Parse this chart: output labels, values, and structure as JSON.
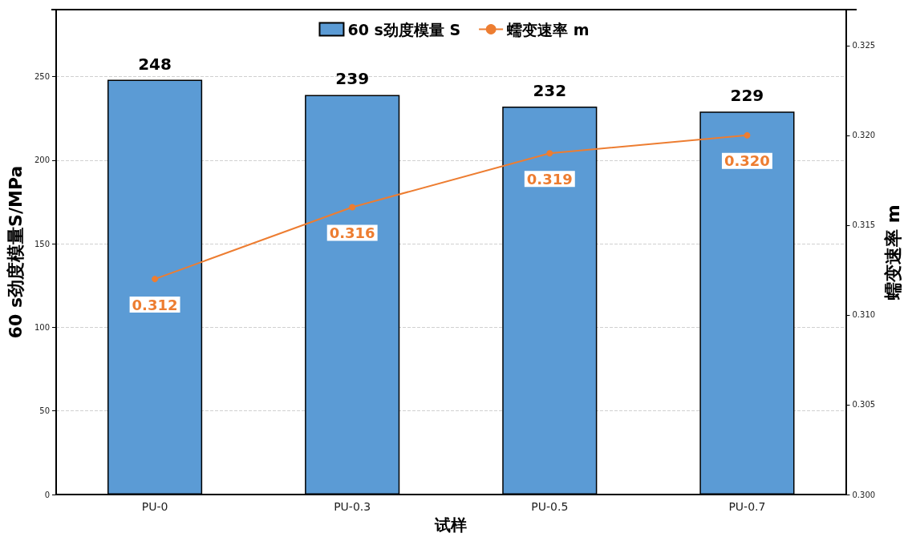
{
  "chart_data": {
    "type": "bar",
    "xlabel": "试样",
    "ylabel": "60 s劲度模量S/MPa",
    "y2label": "蠕变速率 m",
    "categories": [
      "PU-0",
      "PU-0.3",
      "PU-0.5",
      "PU-0.7"
    ],
    "series": [
      {
        "name": "60 s劲度模量 S",
        "color": "#5b9bd5",
        "values": [
          248,
          239,
          232,
          229
        ]
      },
      {
        "name": "蠕变速率 m",
        "type": "line",
        "axis": "y2",
        "color": "#ed7d31",
        "marker": "circle",
        "values": [
          0.312,
          0.316,
          0.319,
          0.32
        ],
        "value_labels": [
          "0.312",
          "0.316",
          "0.319",
          "0.320"
        ]
      }
    ],
    "ylim": [
      0,
      290
    ],
    "yticks": [
      0,
      50,
      100,
      150,
      200,
      250
    ],
    "y2lim": [
      0.3,
      0.327
    ],
    "y2ticks": [
      {
        "value": 0.3,
        "label": "0.300"
      },
      0.305,
      {
        "value": 0.31,
        "label": "0.310"
      },
      0.315,
      {
        "value": 0.32,
        "label": "0.320"
      },
      0.325
    ],
    "grid": "y",
    "legend": "top",
    "data_labels": true
  }
}
